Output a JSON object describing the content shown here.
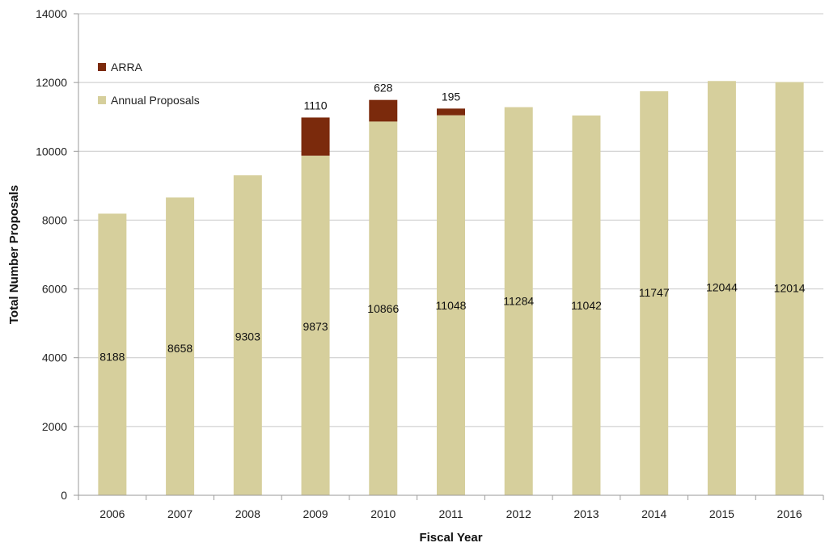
{
  "chart_data": {
    "type": "bar",
    "stacked": true,
    "categories": [
      "2006",
      "2007",
      "2008",
      "2009",
      "2010",
      "2011",
      "2012",
      "2013",
      "2014",
      "2015",
      "2016"
    ],
    "series": [
      {
        "name": "Annual Proposals",
        "color": "#d6cf9c",
        "values": [
          8188,
          8658,
          9303,
          9873,
          10866,
          11048,
          11284,
          11042,
          11747,
          12044,
          12014
        ]
      },
      {
        "name": "ARRA",
        "color": "#7b2a0c",
        "values": [
          0,
          0,
          0,
          1110,
          628,
          195,
          0,
          0,
          0,
          0,
          0
        ]
      }
    ],
    "data_labels": {
      "Annual Proposals": [
        "8188",
        "8658",
        "9303",
        "9873",
        "10866",
        "11048",
        "11284",
        "11042",
        "11747",
        "12044",
        "12014"
      ],
      "ARRA": [
        "",
        "",
        "",
        "1110",
        "628",
        "195",
        "",
        "",
        "",
        "",
        ""
      ]
    },
    "title": "",
    "xlabel": "Fiscal Year",
    "ylabel": "Total Number Proposals",
    "ylim": [
      0,
      14000
    ],
    "yticks": [
      "0",
      "2000",
      "4000",
      "6000",
      "8000",
      "10000",
      "12000",
      "14000"
    ],
    "grid": true,
    "legend": {
      "placement": "top-left",
      "entries": [
        "ARRA",
        "Annual Proposals"
      ]
    }
  }
}
